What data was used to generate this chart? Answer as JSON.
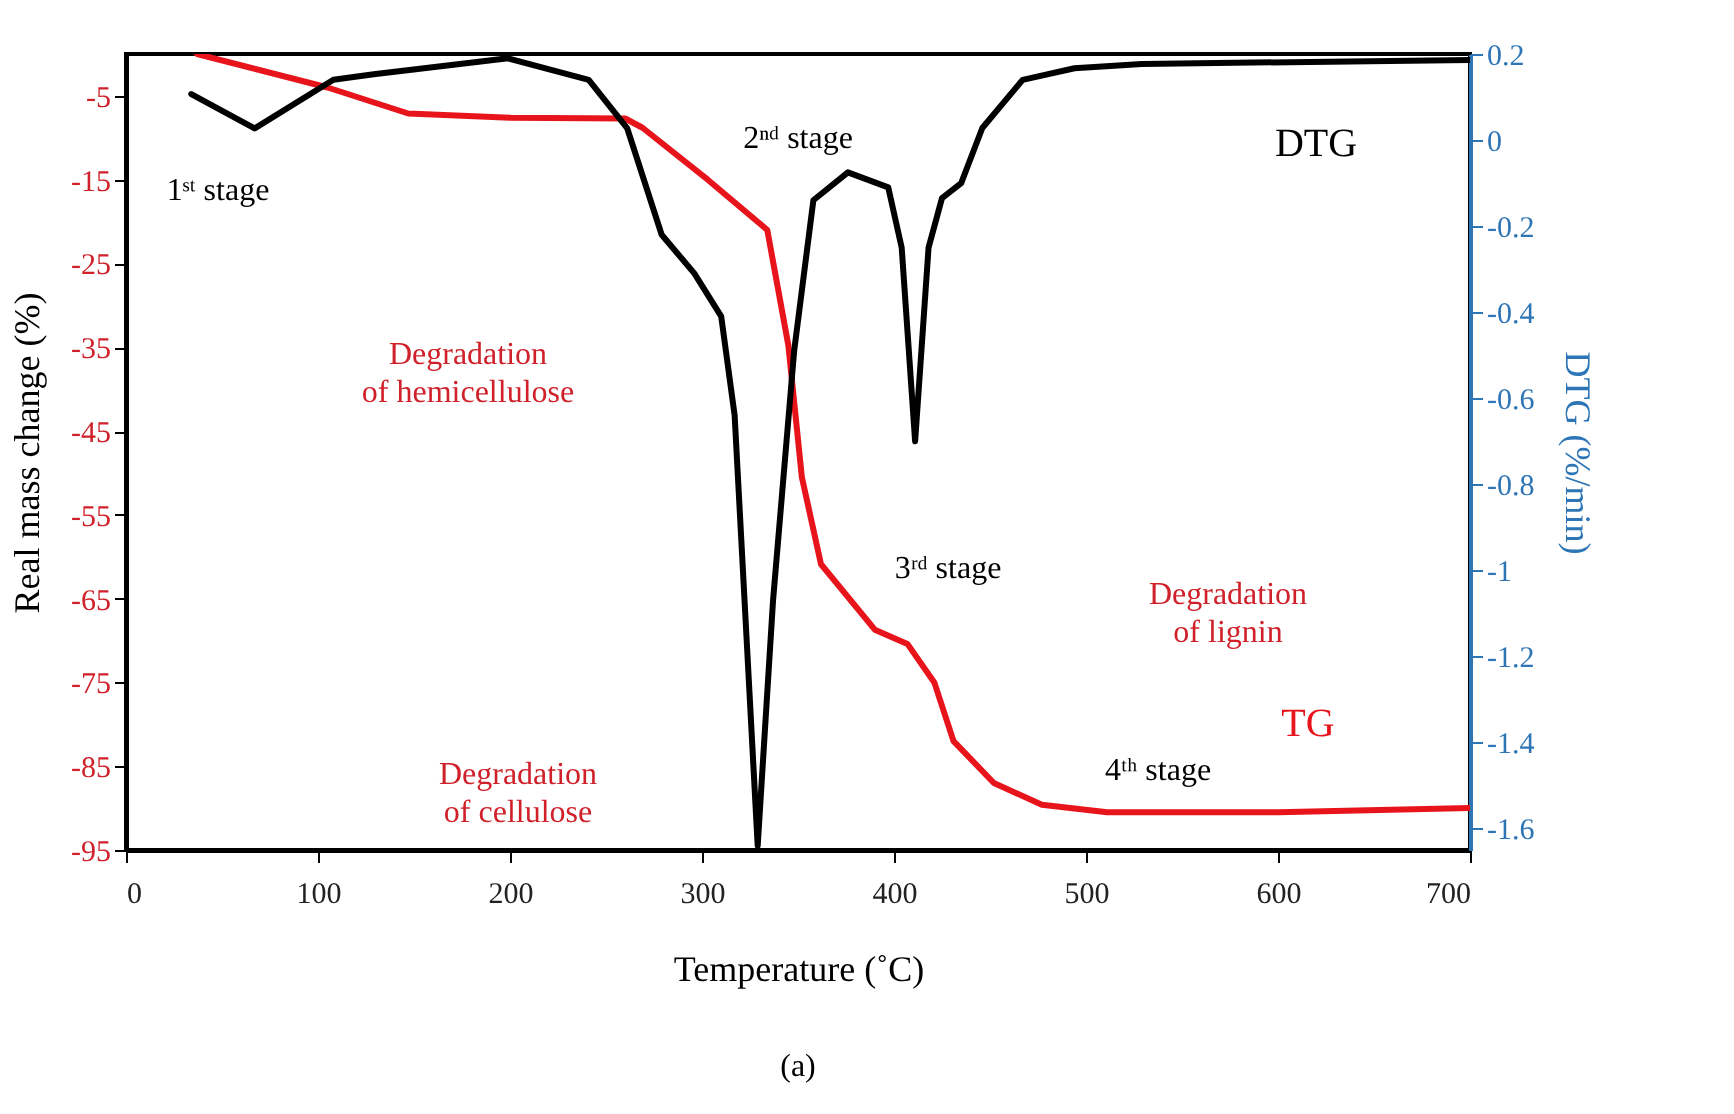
{
  "chart_data": {
    "type": "line",
    "xlabel": "Temperature (˚C)",
    "ylabel": "Real mass change (%)",
    "y2label": "DTG (%/min)",
    "xlim": [
      0,
      700
    ],
    "xticks": [
      0,
      100,
      200,
      300,
      400,
      500,
      600,
      700
    ],
    "ylim": [
      -95,
      0
    ],
    "yticks": [
      -5,
      -15,
      -25,
      -35,
      -45,
      -55,
      -65,
      -75,
      -85,
      -95
    ],
    "y2lim": [
      -1.65,
      0.2
    ],
    "y2ticks": [
      0.2,
      0,
      -0.2,
      -0.4,
      -0.6,
      -0.8,
      -1,
      -1.2,
      -1.4,
      -1.6
    ],
    "grid": false,
    "line_style": "solid",
    "marker": "none",
    "series": [
      {
        "name": "TG",
        "color": "#e8141b",
        "x": [
          37,
          105,
          147,
          200,
          260,
          269,
          303,
          334,
          345,
          352,
          362,
          390,
          407,
          421,
          431,
          452,
          477,
          511,
          600,
          700
        ],
        "values": [
          0,
          -4,
          -7.1,
          -7.6,
          -7.7,
          -8.8,
          -15,
          -21,
          -34.8,
          -50.5,
          -60.9,
          -68.7,
          -70.4,
          -75,
          -82,
          -87,
          -89.6,
          -90.5,
          -90.5,
          -90
        ]
      },
      {
        "name": "DTG",
        "color": "#000000",
        "axis": "y2",
        "x": [
          34,
          67,
          108,
          129,
          199,
          241,
          261,
          279,
          296,
          310,
          317,
          329,
          337,
          348,
          358,
          376,
          397,
          404,
          411,
          418,
          425,
          435,
          446,
          467,
          494,
          529,
          700
        ],
        "values": [
          0.107,
          0.027,
          0.14,
          0.153,
          0.19,
          0.14,
          0.028,
          -0.22,
          -0.31,
          -0.41,
          -0.64,
          -1.64,
          -1.07,
          -0.49,
          -0.14,
          -0.075,
          -0.11,
          -0.25,
          -0.7,
          -0.25,
          -0.135,
          -0.1,
          0.028,
          0.14,
          0.167,
          0.177,
          0.186
        ]
      }
    ],
    "annotations": [
      "1ˢᵗ stage",
      "2ⁿᵈ stage",
      "Degradation\nof hemicellulose",
      "Degradation\nof lignin",
      "3ʳᵈ stage",
      "Degradation\nof cellulose",
      "4ᵗʰ stage",
      "(a)"
    ]
  }
}
